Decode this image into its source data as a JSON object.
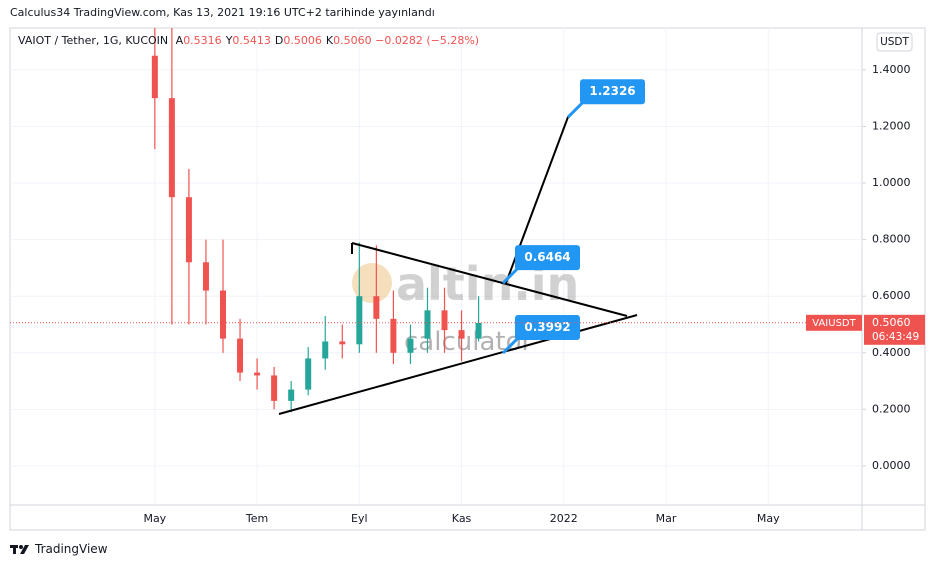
{
  "published": "Calculus34 TradingView.com, Kas 13, 2021 19:16 UTC+2 tarihinde yayınlandı",
  "chart_data": {
    "type": "candlestick",
    "title": "VAIOT / Tether, 1G, KUCOIN",
    "ohlc_legend": [
      {
        "label": "A",
        "value": "0.5316"
      },
      {
        "label": "Y",
        "value": "0.5413"
      },
      {
        "label": "D",
        "value": "0.5006"
      },
      {
        "label": "K",
        "value": "0.5060"
      }
    ],
    "change": "−0.0282 (−5.28%)",
    "currency": "USDT",
    "categories": [
      null,
      null,
      null,
      null,
      null,
      null,
      null,
      null,
      "May",
      null,
      null,
      null,
      null,
      null,
      "Tem",
      null,
      null,
      null,
      null,
      null,
      "Eyl",
      null,
      null,
      null,
      null,
      null,
      "Kas",
      null,
      null,
      null,
      null,
      null,
      "2022",
      null,
      null,
      null,
      null,
      null,
      "Mar",
      null,
      null,
      null,
      null,
      null,
      "May",
      null,
      null,
      null,
      null,
      null
    ],
    "open": [
      null,
      null,
      null,
      null,
      null,
      null,
      null,
      null,
      1.45,
      1.3,
      0.95,
      0.72,
      0.62,
      0.45,
      0.33,
      0.32,
      0.23,
      0.27,
      0.38,
      0.44,
      0.43,
      0.6,
      0.52,
      0.4,
      0.45,
      0.55,
      0.48,
      0.45,
      null,
      null,
      null,
      null,
      null,
      null,
      null,
      null,
      null,
      null,
      null,
      null,
      null,
      null,
      null,
      null,
      null,
      null,
      null,
      null,
      null,
      null
    ],
    "high": [
      null,
      null,
      null,
      null,
      null,
      null,
      null,
      null,
      1.6,
      1.6,
      1.05,
      0.8,
      0.8,
      0.52,
      0.38,
      0.35,
      0.3,
      0.42,
      0.53,
      0.5,
      0.79,
      0.78,
      0.62,
      0.5,
      0.63,
      0.63,
      0.55,
      0.6,
      null,
      null,
      null,
      null,
      null,
      null,
      null,
      null,
      null,
      null,
      null,
      null,
      null,
      null,
      null,
      null,
      null,
      null,
      null,
      null,
      null,
      null
    ],
    "low": [
      null,
      null,
      null,
      null,
      null,
      null,
      null,
      null,
      1.12,
      0.5,
      0.5,
      0.5,
      0.4,
      0.3,
      0.27,
      0.2,
      0.19,
      0.25,
      0.34,
      0.38,
      0.4,
      0.4,
      0.36,
      0.36,
      0.4,
      0.4,
      0.37,
      0.44,
      null,
      null,
      null,
      null,
      null,
      null,
      null,
      null,
      null,
      null,
      null,
      null,
      null,
      null,
      null,
      null,
      null,
      null,
      null,
      null,
      null,
      null
    ],
    "close": [
      null,
      null,
      null,
      null,
      null,
      null,
      null,
      null,
      1.3,
      0.95,
      0.72,
      0.62,
      0.45,
      0.33,
      0.32,
      0.23,
      0.27,
      0.38,
      0.44,
      0.43,
      0.6,
      0.52,
      0.4,
      0.45,
      0.55,
      0.48,
      0.45,
      0.506,
      null,
      null,
      null,
      null,
      null,
      null,
      null,
      null,
      null,
      null,
      null,
      null,
      null,
      null,
      null,
      null,
      null,
      null,
      null,
      null,
      null,
      null
    ],
    "up_color": "#26a69a",
    "down_color": "#ef5350",
    "ylim": [
      -0.138,
      1.548
    ],
    "yticks": [
      {
        "value": 0,
        "label": "0.0000"
      },
      {
        "value": 0.2,
        "label": "0.2000"
      },
      {
        "value": 0.4,
        "label": "0.4000"
      },
      {
        "value": 0.6,
        "label": "0.6000"
      },
      {
        "value": 0.8,
        "label": "0.8000"
      },
      {
        "value": 1,
        "label": "1.0000"
      },
      {
        "value": 1.2,
        "label": "1.2000"
      },
      {
        "value": 1.4,
        "label": "1.4000"
      }
    ],
    "grid": true,
    "callouts": [
      {
        "value": 1.2326,
        "label": "1.2326"
      },
      {
        "value": 0.6464,
        "label": "0.6464"
      },
      {
        "value": 0.3992,
        "label": "0.3992"
      }
    ],
    "last_price": {
      "symbol": "VAIUSDT",
      "value": 0.506,
      "label": "0.5060",
      "countdown": "06:43:49"
    },
    "watermark": [
      "altin.in",
      "calculator"
    ]
  },
  "footer": "TradingView"
}
